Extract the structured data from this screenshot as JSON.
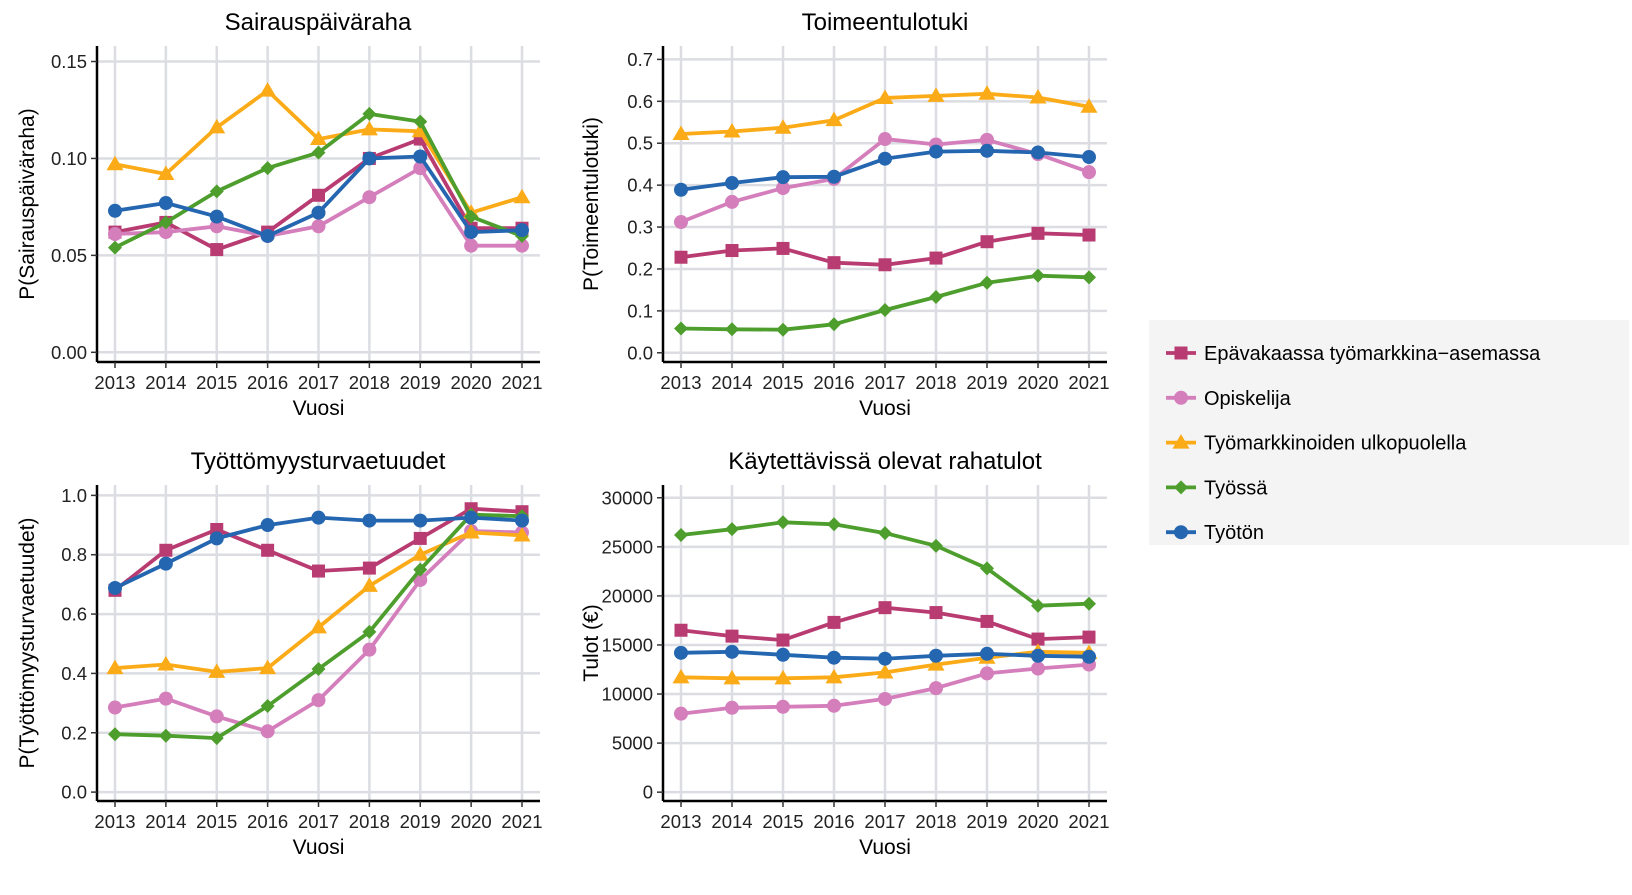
{
  "legend": {
    "placement": "right",
    "entries": [
      {
        "name": "Epävakaassa työmarkkina−asemassa",
        "color": "#B83B72",
        "marker": "square"
      },
      {
        "name": "Opiskelija",
        "color": "#D47EBC",
        "marker": "circle"
      },
      {
        "name": "Työmarkkinoiden ulkopuolella",
        "color": "#FBAB18",
        "marker": "triangle"
      },
      {
        "name": "Työssä",
        "color": "#4E9E2E",
        "marker": "diamond"
      },
      {
        "name": "Työtön",
        "color": "#2566B0",
        "marker": "circle"
      }
    ]
  },
  "chart_data": [
    {
      "type": "line",
      "title": "Sairauspäiväraha",
      "xlabel": "Vuosi",
      "ylabel": "P(Sairauspäiväraha)",
      "x": [
        "2013",
        "2014",
        "2015",
        "2016",
        "2017",
        "2018",
        "2019",
        "2020",
        "2021"
      ],
      "ylim": [
        -0.005,
        0.158
      ],
      "yticks": [
        0,
        0.05,
        0.1,
        0.15
      ],
      "yticklabels": [
        "0.00",
        "0.05",
        "0.10",
        "0.15"
      ],
      "grid": true,
      "series": [
        {
          "name": "Epävakaassa työmarkkina−asemassa",
          "values": [
            0.062,
            0.067,
            0.053,
            0.062,
            0.081,
            0.1,
            0.11,
            0.064,
            0.064
          ]
        },
        {
          "name": "Opiskelija",
          "values": [
            0.061,
            0.062,
            0.065,
            0.06,
            0.065,
            0.08,
            0.095,
            0.055,
            0.055
          ]
        },
        {
          "name": "Työmarkkinoiden ulkopuolella",
          "values": [
            0.097,
            0.092,
            0.116,
            0.135,
            0.11,
            0.115,
            0.114,
            0.072,
            0.08
          ]
        },
        {
          "name": "Työssä",
          "values": [
            0.054,
            0.067,
            0.083,
            0.095,
            0.103,
            0.123,
            0.119,
            0.07,
            0.06
          ]
        },
        {
          "name": "Työtön",
          "values": [
            0.073,
            0.077,
            0.07,
            0.06,
            0.072,
            0.1,
            0.101,
            0.062,
            0.063
          ]
        }
      ]
    },
    {
      "type": "line",
      "title": "Toimeentulotuki",
      "xlabel": "Vuosi",
      "ylabel": "P(Toimeentulotuki)",
      "x": [
        "2013",
        "2014",
        "2015",
        "2016",
        "2017",
        "2018",
        "2019",
        "2020",
        "2021"
      ],
      "ylim": [
        -0.022,
        0.732
      ],
      "yticks": [
        0,
        0.1,
        0.2,
        0.3,
        0.4,
        0.5,
        0.6,
        0.7
      ],
      "yticklabels": [
        "0.0",
        "0.1",
        "0.2",
        "0.3",
        "0.4",
        "0.5",
        "0.6",
        "0.7"
      ],
      "grid": true,
      "series": [
        {
          "name": "Epävakaassa työmarkkina−asemassa",
          "values": [
            0.228,
            0.244,
            0.249,
            0.215,
            0.21,
            0.226,
            0.265,
            0.285,
            0.281
          ]
        },
        {
          "name": "Opiskelija",
          "values": [
            0.312,
            0.36,
            0.393,
            0.415,
            0.51,
            0.497,
            0.508,
            0.474,
            0.431
          ]
        },
        {
          "name": "Työmarkkinoiden ulkopuolella",
          "values": [
            0.522,
            0.528,
            0.537,
            0.555,
            0.608,
            0.613,
            0.618,
            0.609,
            0.587
          ]
        },
        {
          "name": "Työssä",
          "values": [
            0.058,
            0.056,
            0.055,
            0.068,
            0.102,
            0.133,
            0.167,
            0.184,
            0.18
          ]
        },
        {
          "name": "Työtön",
          "values": [
            0.389,
            0.405,
            0.419,
            0.42,
            0.463,
            0.48,
            0.482,
            0.478,
            0.467
          ]
        }
      ]
    },
    {
      "type": "line",
      "title": "Työttömyysturvaetuudet",
      "xlabel": "Vuosi",
      "ylabel": "P(Työttömyysturvaetuudet)",
      "x": [
        "2013",
        "2014",
        "2015",
        "2016",
        "2017",
        "2018",
        "2019",
        "2020",
        "2021"
      ],
      "ylim": [
        -0.03,
        1.035
      ],
      "yticks": [
        0,
        0.2,
        0.4,
        0.6,
        0.8,
        1.0
      ],
      "yticklabels": [
        "0.0",
        "0.2",
        "0.4",
        "0.6",
        "0.8",
        "1.0"
      ],
      "grid": true,
      "series": [
        {
          "name": "Epävakaassa työmarkkina−asemassa",
          "values": [
            0.68,
            0.815,
            0.885,
            0.815,
            0.745,
            0.755,
            0.855,
            0.955,
            0.945
          ]
        },
        {
          "name": "Opiskelija",
          "values": [
            0.285,
            0.315,
            0.255,
            0.205,
            0.31,
            0.48,
            0.715,
            0.88,
            0.875
          ]
        },
        {
          "name": "Työmarkkinoiden ulkopuolella",
          "values": [
            0.418,
            0.43,
            0.405,
            0.418,
            0.555,
            0.695,
            0.8,
            0.875,
            0.865
          ]
        },
        {
          "name": "Työssä",
          "values": [
            0.195,
            0.19,
            0.182,
            0.29,
            0.415,
            0.54,
            0.75,
            0.935,
            0.93
          ]
        },
        {
          "name": "Työtön",
          "values": [
            0.688,
            0.77,
            0.855,
            0.9,
            0.925,
            0.915,
            0.915,
            0.925,
            0.915
          ]
        }
      ]
    },
    {
      "type": "line",
      "title": "Käytettävissä olevat rahatulot",
      "xlabel": "Vuosi",
      "ylabel": "Tulot (€)",
      "x": [
        "2013",
        "2014",
        "2015",
        "2016",
        "2017",
        "2018",
        "2019",
        "2020",
        "2021"
      ],
      "ylim": [
        -900,
        31300
      ],
      "yticks": [
        0,
        5000,
        10000,
        15000,
        20000,
        25000,
        30000
      ],
      "yticklabels": [
        "0",
        "5000",
        "10000",
        "15000",
        "20000",
        "25000",
        "30000"
      ],
      "grid": true,
      "series": [
        {
          "name": "Epävakaassa työmarkkina−asemassa",
          "values": [
            16500,
            15900,
            15500,
            17300,
            18800,
            18300,
            17400,
            15600,
            15800
          ]
        },
        {
          "name": "Opiskelija",
          "values": [
            8000,
            8600,
            8700,
            8800,
            9500,
            10600,
            12100,
            12600,
            13000
          ]
        },
        {
          "name": "Työmarkkinoiden ulkopuolella",
          "values": [
            11700,
            11600,
            11600,
            11700,
            12200,
            13000,
            13700,
            14300,
            14200
          ]
        },
        {
          "name": "Työssä",
          "values": [
            26200,
            26800,
            27500,
            27300,
            26400,
            25100,
            22800,
            19000,
            19200
          ]
        },
        {
          "name": "Työtön",
          "values": [
            14200,
            14300,
            14000,
            13700,
            13600,
            13900,
            14100,
            13900,
            13800
          ]
        }
      ]
    }
  ]
}
